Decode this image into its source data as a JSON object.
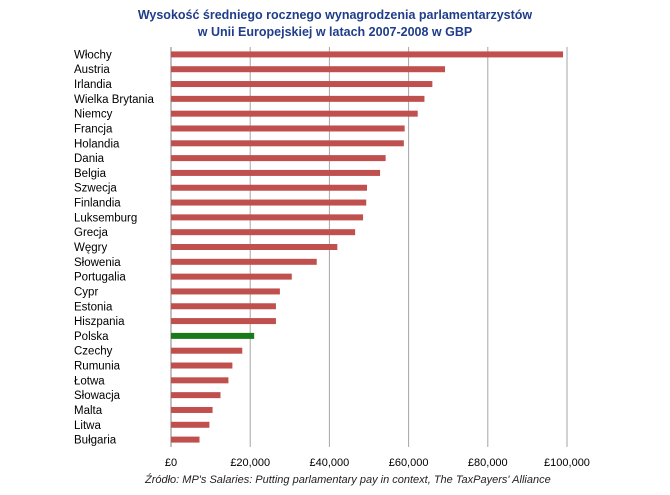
{
  "chart_data": {
    "type": "bar",
    "orientation": "horizontal",
    "title": "Wysokość średniego rocznego wynagrodzenia parlamentarzystów",
    "subtitle": "w Unii Europejskiej w latach 2007-2008  w GBP",
    "source": "Źródło: MP's Salaries: Putting parlamentary pay in context, The TaxPayers' Alliance",
    "categories": [
      "Włochy",
      "Austria",
      "Irlandia",
      "Wielka Brytania",
      "Niemcy",
      "Francja",
      "Holandia",
      "Dania",
      "Belgia",
      "Szwecja",
      "Finlandia",
      "Luksemburg",
      "Grecja",
      "Węgry",
      "Słowenia",
      "Portugalia",
      "Cypr",
      "Estonia",
      "Hiszpania",
      "Polska",
      "Czechy",
      "Rumunia",
      "Łotwa",
      "Słowacja",
      "Malta",
      "Litwa",
      "Bułgaria"
    ],
    "values": [
      99000,
      69200,
      66000,
      64000,
      62300,
      59000,
      58800,
      54200,
      52800,
      49500,
      49300,
      48500,
      46500,
      42000,
      36800,
      30500,
      27500,
      26500,
      26500,
      21000,
      18000,
      15500,
      14500,
      12500,
      10500,
      9700,
      7200
    ],
    "highlight_index": 19,
    "colors": {
      "bar": "#c0504d",
      "highlight": "#1a7a1a",
      "grid": "#a6a6a6",
      "title": "#1f3d8a"
    },
    "xticks": [
      "£0",
      "£20,000",
      "£40,000",
      "£60,000",
      "£80,000",
      "£100,000"
    ],
    "xtick_values": [
      0,
      20000,
      40000,
      60000,
      80000,
      100000
    ],
    "xlim": [
      0,
      100000
    ],
    "grid": true
  }
}
